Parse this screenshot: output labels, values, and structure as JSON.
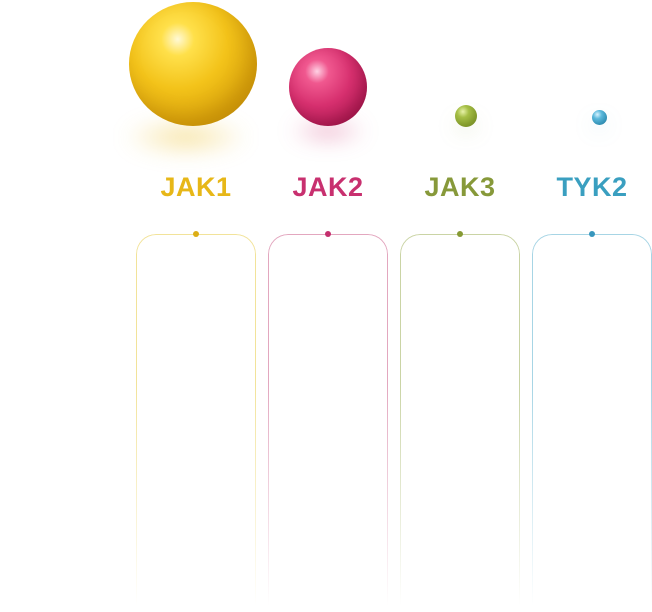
{
  "items": [
    {
      "label": "JAK1",
      "color": "#e7b718"
    },
    {
      "label": "JAK2",
      "color": "#c8306f"
    },
    {
      "label": "JAK3",
      "color": "#87993a"
    },
    {
      "label": "TYK2",
      "color": "#3a9fc0"
    }
  ]
}
